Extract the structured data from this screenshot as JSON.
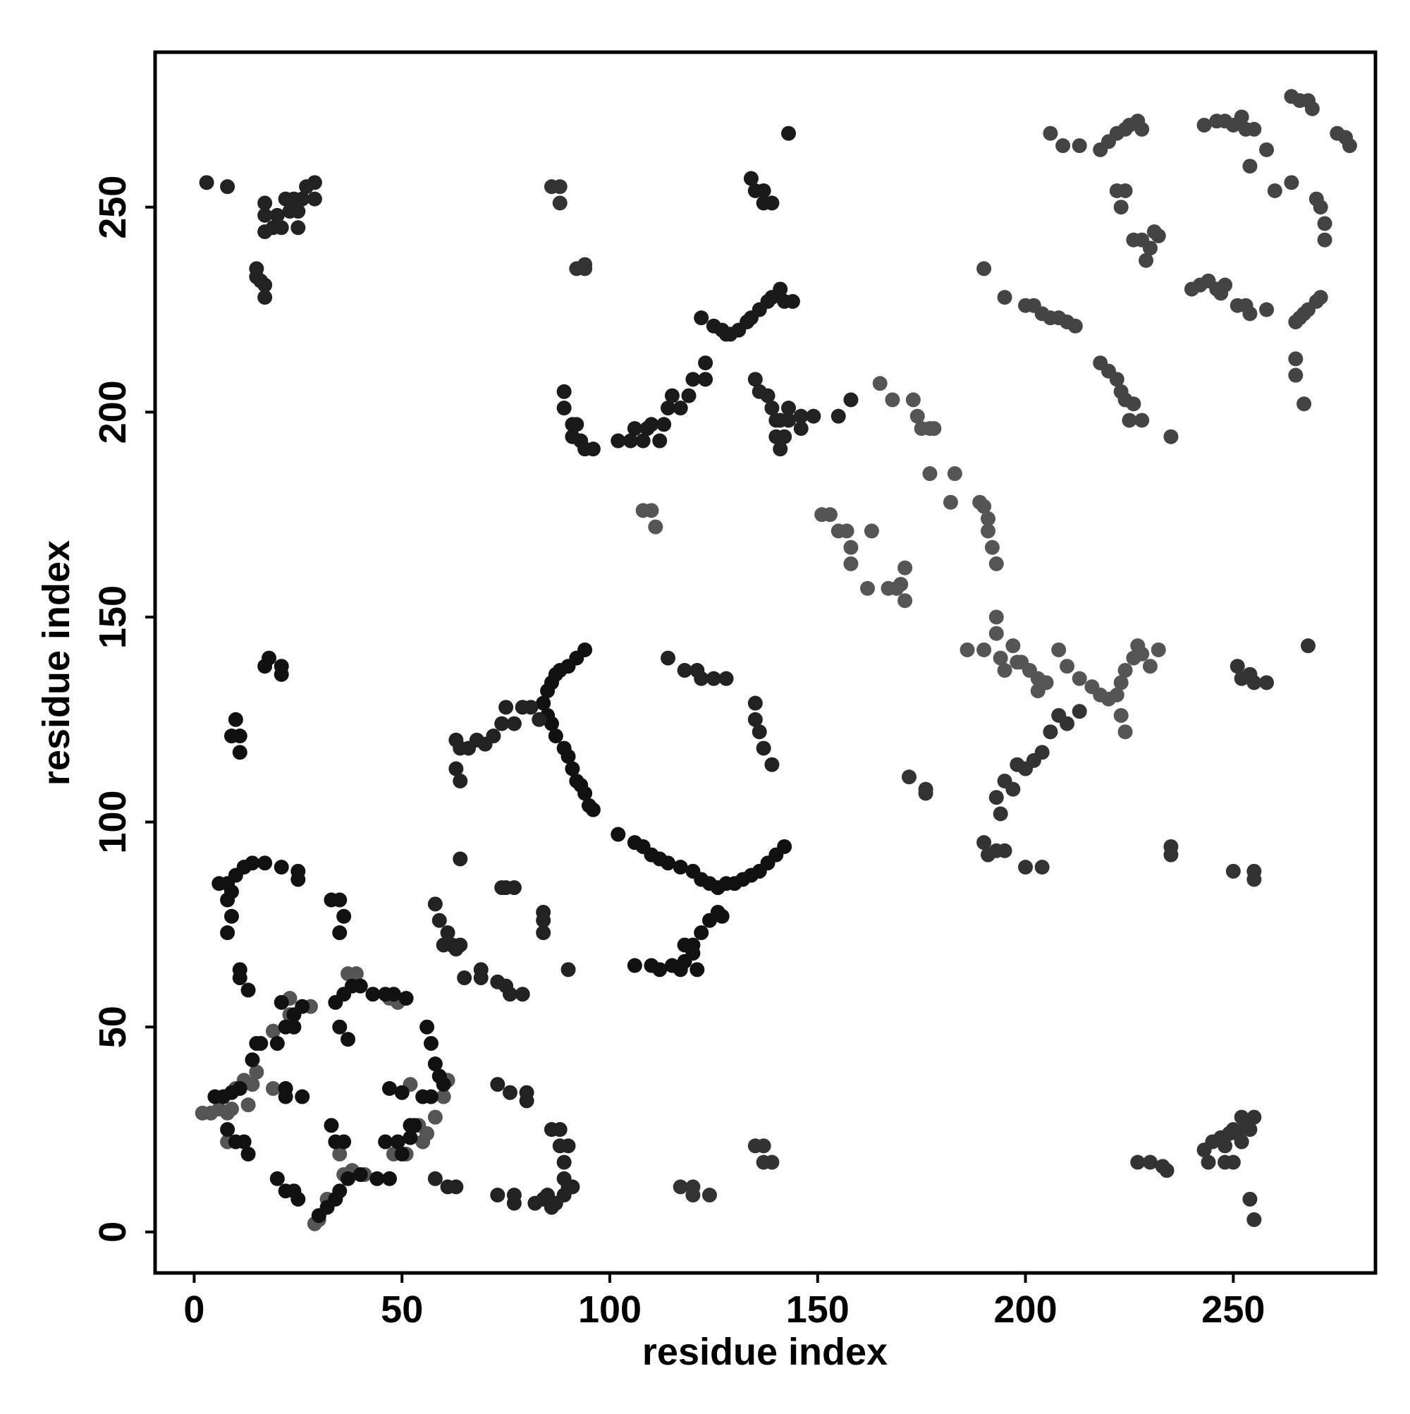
{
  "chart_data": {
    "type": "scatter",
    "x_label": "residue index",
    "y_label": "residue index",
    "xlim": [
      -9.4,
      284.2
    ],
    "ylim": [
      -10,
      287.8
    ],
    "xticks": [
      0,
      50,
      100,
      150,
      200,
      250
    ],
    "yticks": [
      0,
      50,
      100,
      150,
      200,
      250
    ],
    "grid": false,
    "series": [
      {
        "color": "#555555",
        "x": [
          2,
          4,
          6,
          8,
          9,
          12,
          14,
          15,
          10,
          13,
          19,
          8,
          19,
          23,
          23,
          28,
          29,
          30,
          32,
          36,
          35,
          38,
          41,
          37,
          39,
          47,
          49,
          52,
          55,
          56,
          60,
          61,
          54,
          58,
          48,
          51
        ],
        "values": [
          29,
          29,
          30,
          29,
          30,
          37,
          36,
          39,
          35,
          31,
          35,
          22,
          49,
          57,
          53,
          55,
          2,
          3,
          8,
          14,
          19,
          15,
          14,
          63,
          63,
          57,
          56,
          36,
          22,
          24,
          33,
          37,
          26,
          28,
          19,
          19
        ]
      },
      {
        "color": "#555555",
        "x": [
          108,
          110,
          111
        ],
        "values": [
          176,
          176,
          172
        ]
      },
      {
        "color": "#555555",
        "x": [
          151,
          153,
          155,
          157,
          158,
          158,
          162,
          163,
          165,
          167,
          168,
          169,
          170,
          171,
          171,
          173,
          174,
          175,
          177,
          177,
          178,
          182,
          183,
          186,
          190,
          189,
          190,
          191,
          191,
          192,
          193,
          193,
          193,
          194,
          195,
          197,
          198,
          199,
          201,
          203,
          203,
          205,
          208,
          210,
          213,
          216,
          218,
          220,
          222,
          223,
          224,
          226,
          227,
          228,
          230,
          232,
          223,
          224
        ],
        "values": [
          175,
          175,
          171,
          171,
          167,
          163,
          157,
          171,
          207,
          157,
          203,
          157,
          158,
          162,
          154,
          203,
          199,
          196,
          196,
          185,
          196,
          178,
          185,
          142,
          142,
          178,
          177,
          174,
          171,
          167,
          163,
          150,
          146,
          140,
          137,
          143,
          139,
          139,
          137,
          135,
          132,
          134,
          142,
          138,
          135,
          133,
          131,
          130,
          131,
          134,
          137,
          140,
          143,
          141,
          138,
          142,
          126,
          122
        ]
      },
      {
        "color": "#333333",
        "x": [
          172,
          176,
          176,
          190,
          191,
          193,
          195,
          194,
          193,
          195,
          197,
          198,
          200,
          202,
          204,
          206,
          208,
          210,
          213,
          200,
          204
        ],
        "values": [
          111,
          107,
          108,
          95,
          92,
          93,
          93,
          102,
          106,
          110,
          108,
          114,
          113,
          115,
          117,
          122,
          126,
          124,
          127,
          89,
          89
        ]
      },
      {
        "color": "#444444",
        "x": [
          190,
          195,
          200,
          202,
          204,
          206,
          208,
          210,
          212,
          206,
          209,
          213,
          218,
          220,
          222,
          223,
          224,
          226,
          228,
          225,
          235,
          218,
          220,
          222,
          224,
          225,
          227,
          228,
          222,
          224,
          223,
          226,
          228,
          229,
          230,
          231,
          232,
          240,
          242,
          244,
          246,
          247,
          248,
          243,
          246,
          248,
          250,
          252,
          253,
          255,
          254,
          258,
          251,
          253,
          254,
          258,
          260,
          264,
          265,
          266,
          267,
          268,
          270,
          271,
          265,
          265,
          267,
          264,
          266,
          268,
          269,
          270,
          271,
          272,
          272,
          275,
          277,
          278
        ],
        "values": [
          235,
          228,
          226,
          226,
          224,
          223,
          223,
          222,
          221,
          268,
          265,
          265,
          212,
          210,
          208,
          205,
          203,
          202,
          198,
          198,
          194,
          264,
          266,
          268,
          269,
          270,
          271,
          269,
          254,
          254,
          250,
          242,
          242,
          237,
          240,
          244,
          243,
          230,
          231,
          232,
          230,
          229,
          231,
          270,
          271,
          271,
          270,
          272,
          269,
          269,
          260,
          264,
          226,
          226,
          224,
          225,
          254,
          256,
          222,
          223,
          224,
          225,
          227,
          228,
          209,
          213,
          202,
          277,
          276,
          276,
          274,
          252,
          250,
          246,
          242,
          268,
          267,
          265
        ]
      },
      {
        "color": "#333333",
        "x": [
          227,
          230,
          233,
          234,
          235,
          235,
          243,
          244,
          245,
          247,
          248,
          249,
          250,
          251,
          252,
          252,
          253,
          254,
          255,
          254,
          255,
          248,
          250,
          250,
          255,
          255,
          251,
          252,
          254,
          255,
          258,
          268
        ],
        "values": [
          17,
          17,
          16,
          15,
          94,
          92,
          20,
          17,
          22,
          23,
          21,
          24,
          25,
          24,
          22,
          28,
          26,
          25,
          28,
          8,
          3,
          17,
          17,
          88,
          88,
          86,
          138,
          135,
          136,
          134,
          134,
          143
        ]
      },
      {
        "color": "#111111",
        "x": [
          5,
          7,
          9,
          11,
          8,
          10,
          12,
          13,
          14,
          15,
          16,
          20,
          22,
          22,
          26,
          20,
          22,
          24,
          25,
          30,
          32,
          34,
          35,
          37,
          40,
          44,
          47,
          46,
          49,
          50,
          52,
          47,
          50,
          33,
          34,
          36,
          37,
          35,
          34,
          36,
          38,
          40,
          43,
          46,
          48,
          51,
          56,
          57,
          58,
          59,
          60,
          55,
          57,
          53,
          52,
          22,
          24,
          21,
          24,
          26
        ],
        "values": [
          33,
          33,
          34,
          35,
          25,
          22,
          22,
          19,
          42,
          46,
          46,
          46,
          35,
          33,
          33,
          13,
          10,
          10,
          8,
          4,
          6,
          8,
          10,
          13,
          14,
          13,
          13,
          22,
          22,
          19,
          26,
          35,
          34,
          26,
          22,
          22,
          47,
          50,
          56,
          58,
          60,
          60,
          58,
          58,
          58,
          57,
          50,
          46,
          41,
          38,
          36,
          33,
          33,
          26,
          23,
          50,
          50,
          56,
          53,
          55
        ]
      },
      {
        "color": "#111111",
        "x": [
          8,
          6,
          9,
          8,
          9,
          10,
          12,
          14,
          17,
          21,
          25,
          25,
          8,
          11,
          11,
          13,
          33,
          35,
          36,
          35,
          18,
          17,
          21,
          21,
          10,
          9,
          11,
          11
        ],
        "values": [
          85,
          85,
          83,
          81,
          77,
          87,
          89,
          90,
          90,
          89,
          86,
          88,
          73,
          64,
          62,
          59,
          81,
          81,
          77,
          73,
          140,
          138,
          138,
          136,
          125,
          121,
          121,
          117
        ]
      },
      {
        "color": "#222222",
        "x": [
          3,
          8,
          17,
          17,
          17,
          19,
          20,
          21,
          22,
          23,
          25,
          24,
          26,
          27,
          29,
          29,
          25,
          15,
          15,
          16,
          17,
          17
        ],
        "values": [
          256,
          255,
          251,
          248,
          244,
          245,
          248,
          245,
          252,
          249,
          249,
          252,
          252,
          255,
          252,
          256,
          245,
          235,
          233,
          232,
          231,
          228
        ]
      },
      {
        "color": "#222222",
        "x": [
          64,
          58,
          59,
          61,
          62,
          63,
          64,
          60,
          65,
          69,
          69,
          73,
          75,
          76,
          79,
          74,
          77,
          75,
          84,
          84,
          84,
          90,
          73,
          76,
          80,
          80,
          73,
          77,
          77,
          82,
          84,
          85,
          86,
          87,
          89,
          90,
          91,
          89,
          89,
          90,
          88,
          86,
          88,
          58,
          61,
          63
        ],
        "values": [
          91,
          80,
          76,
          73,
          70,
          69,
          70,
          70,
          62,
          62,
          64,
          61,
          60,
          58,
          58,
          84,
          84,
          84,
          78,
          76,
          73,
          64,
          36,
          34,
          32,
          34,
          9,
          9,
          7,
          7,
          8,
          9,
          6,
          7,
          9,
          11,
          11,
          13,
          17,
          21,
          21,
          25,
          25,
          13,
          11,
          11
        ]
      },
      {
        "color": "#111111",
        "x": [
          84,
          85,
          86,
          87,
          88,
          90,
          92,
          94,
          85,
          86,
          87,
          89,
          90,
          91,
          92,
          93,
          94,
          95,
          96,
          102,
          106,
          108,
          110,
          112,
          114,
          117,
          120,
          122,
          124,
          126,
          128,
          130,
          132,
          134,
          136,
          138,
          140,
          142
        ],
        "values": [
          129,
          132,
          134,
          136,
          137,
          138,
          140,
          142,
          126,
          124,
          121,
          118,
          116,
          113,
          110,
          109,
          107,
          104,
          103,
          97,
          95,
          94,
          92,
          91,
          90,
          89,
          88,
          86,
          85,
          84,
          85,
          85,
          86,
          87,
          88,
          90,
          92,
          94
        ]
      },
      {
        "color": "#222222",
        "x": [
          63,
          64,
          63,
          64,
          66,
          68,
          70,
          72,
          74,
          75,
          77,
          79,
          81,
          83
        ],
        "values": [
          120,
          118,
          113,
          110,
          118,
          120,
          119,
          121,
          124,
          128,
          124,
          128,
          128,
          125
        ]
      },
      {
        "color": "#111111",
        "x": [
          106,
          110,
          112,
          115,
          117,
          118,
          120,
          120,
          122,
          124,
          126,
          127,
          118,
          121
        ],
        "values": [
          65,
          65,
          64,
          65,
          64,
          66,
          68,
          70,
          73,
          76,
          78,
          77,
          70,
          64
        ]
      },
      {
        "color": "#333333",
        "x": [
          117,
          120,
          120,
          124,
          135,
          137,
          137,
          139
        ],
        "values": [
          11,
          11,
          9,
          9,
          21,
          21,
          17,
          17
        ]
      },
      {
        "color": "#222222",
        "x": [
          135,
          135,
          136,
          137,
          139,
          114,
          118,
          121,
          122,
          125,
          128
        ],
        "values": [
          129,
          125,
          122,
          118,
          114,
          140,
          137,
          137,
          135,
          135,
          135
        ]
      },
      {
        "color": "#333333",
        "x": [
          86,
          88,
          88,
          92,
          94,
          94
        ],
        "values": [
          255,
          255,
          251,
          235,
          236,
          235
        ]
      },
      {
        "color": "#1a1a1a",
        "x": [
          89,
          89,
          91,
          92,
          91,
          93,
          94,
          96,
          102,
          105,
          106,
          108,
          109,
          110,
          112,
          113,
          114,
          115,
          117,
          119,
          120,
          123,
          123,
          122,
          125,
          127,
          128,
          129,
          131,
          133,
          134,
          136,
          138,
          139,
          141,
          142,
          144,
          143,
          134,
          135,
          137,
          137,
          139
        ],
        "values": [
          205,
          201,
          197,
          197,
          194,
          193,
          191,
          191,
          193,
          193,
          196,
          193,
          196,
          197,
          193,
          197,
          201,
          204,
          201,
          204,
          208,
          212,
          208,
          223,
          221,
          220,
          219,
          219,
          220,
          222,
          223,
          225,
          227,
          228,
          230,
          227,
          227,
          268,
          257,
          254,
          254,
          251,
          251
        ]
      },
      {
        "color": "#222222",
        "x": [
          135,
          136,
          138,
          139,
          140,
          141,
          143,
          143,
          140,
          142,
          141,
          146,
          146,
          149,
          155,
          158
        ],
        "values": [
          208,
          205,
          204,
          201,
          198,
          198,
          201,
          198,
          194,
          194,
          191,
          196,
          199,
          199,
          199,
          203
        ]
      }
    ]
  }
}
